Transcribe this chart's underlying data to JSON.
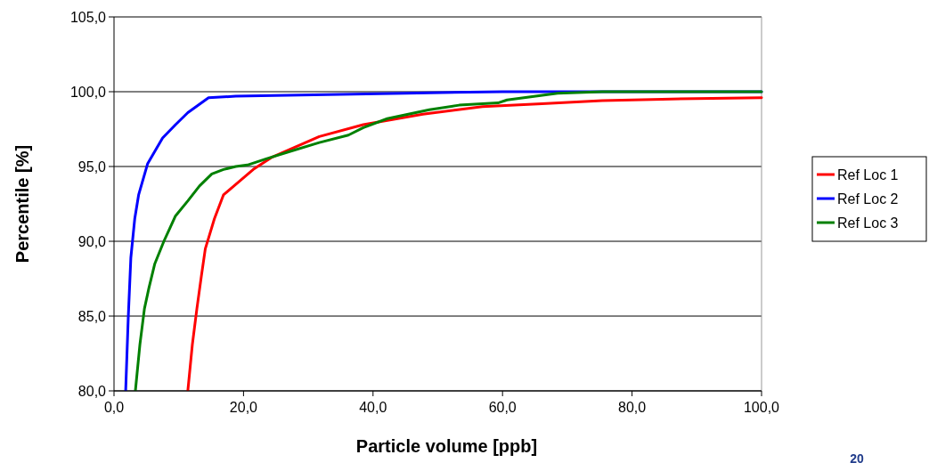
{
  "chart_data": {
    "type": "line",
    "xlabel": "Particle volume [ppb]",
    "ylabel": "Percentile [%]",
    "xlim": [
      0,
      100
    ],
    "ylim": [
      80,
      105
    ],
    "xticks": [
      {
        "value": 0,
        "label": "0,0"
      },
      {
        "value": 20,
        "label": "20,0"
      },
      {
        "value": 40,
        "label": "40,0"
      },
      {
        "value": 60,
        "label": "60,0"
      },
      {
        "value": 80,
        "label": "80,0"
      },
      {
        "value": 100,
        "label": "100,0"
      }
    ],
    "yticks": [
      {
        "value": 80,
        "label": "80,0"
      },
      {
        "value": 85,
        "label": "85,0"
      },
      {
        "value": 90,
        "label": "90,0"
      },
      {
        "value": 95,
        "label": "95,0"
      },
      {
        "value": 100,
        "label": "100,0"
      },
      {
        "value": 105,
        "label": "105,0"
      }
    ],
    "grid": "y",
    "legend": "right",
    "marker": "none",
    "line_style": "solid",
    "annotations": [
      "20"
    ],
    "series": [
      {
        "name": "Ref Loc 1",
        "color": "#ff0000",
        "x": [
          11.4,
          12.1,
          12.8,
          13.5,
          14.1,
          14.8,
          15.5,
          16.9,
          18.8,
          21.5,
          24.3,
          28,
          31.7,
          38.5,
          47.7,
          56.9,
          66.1,
          75.4,
          84.6,
          100
        ],
        "values": [
          80,
          83.1,
          85.5,
          87.7,
          89.5,
          90.5,
          91.5,
          93.1,
          93.8,
          94.8,
          95.6,
          96.3,
          97,
          97.8,
          98.5,
          99,
          99.2,
          99.4,
          99.5,
          99.6
        ]
      },
      {
        "name": "Ref Loc 2",
        "color": "#0000ff",
        "x": [
          1.8,
          2.2,
          2.6,
          3.2,
          3.8,
          5.2,
          7.5,
          9.5,
          11.4,
          14.6,
          18.8,
          45,
          60,
          100
        ],
        "values": [
          80,
          84.9,
          88.9,
          91.5,
          93.1,
          95.2,
          96.9,
          97.8,
          98.6,
          99.6,
          99.7,
          99.9,
          100,
          100
        ]
      },
      {
        "name": "Ref Loc 3",
        "color": "#008000",
        "x": [
          3.3,
          4,
          4.7,
          5.4,
          6.3,
          7.7,
          9.5,
          11.4,
          13.2,
          15.1,
          16.9,
          18.8,
          20.6,
          23.4,
          27.1,
          31.7,
          36.2,
          38.5,
          42.2,
          48.7,
          53.3,
          59.3,
          60.7,
          68.5,
          75.4,
          100
        ],
        "values": [
          80,
          83.1,
          85.5,
          86.9,
          88.5,
          90,
          91.7,
          92.7,
          93.7,
          94.5,
          94.8,
          95,
          95.1,
          95.5,
          96,
          96.6,
          97.1,
          97.6,
          98.2,
          98.8,
          99.1,
          99.25,
          99.45,
          99.9,
          100,
          100
        ]
      }
    ]
  }
}
